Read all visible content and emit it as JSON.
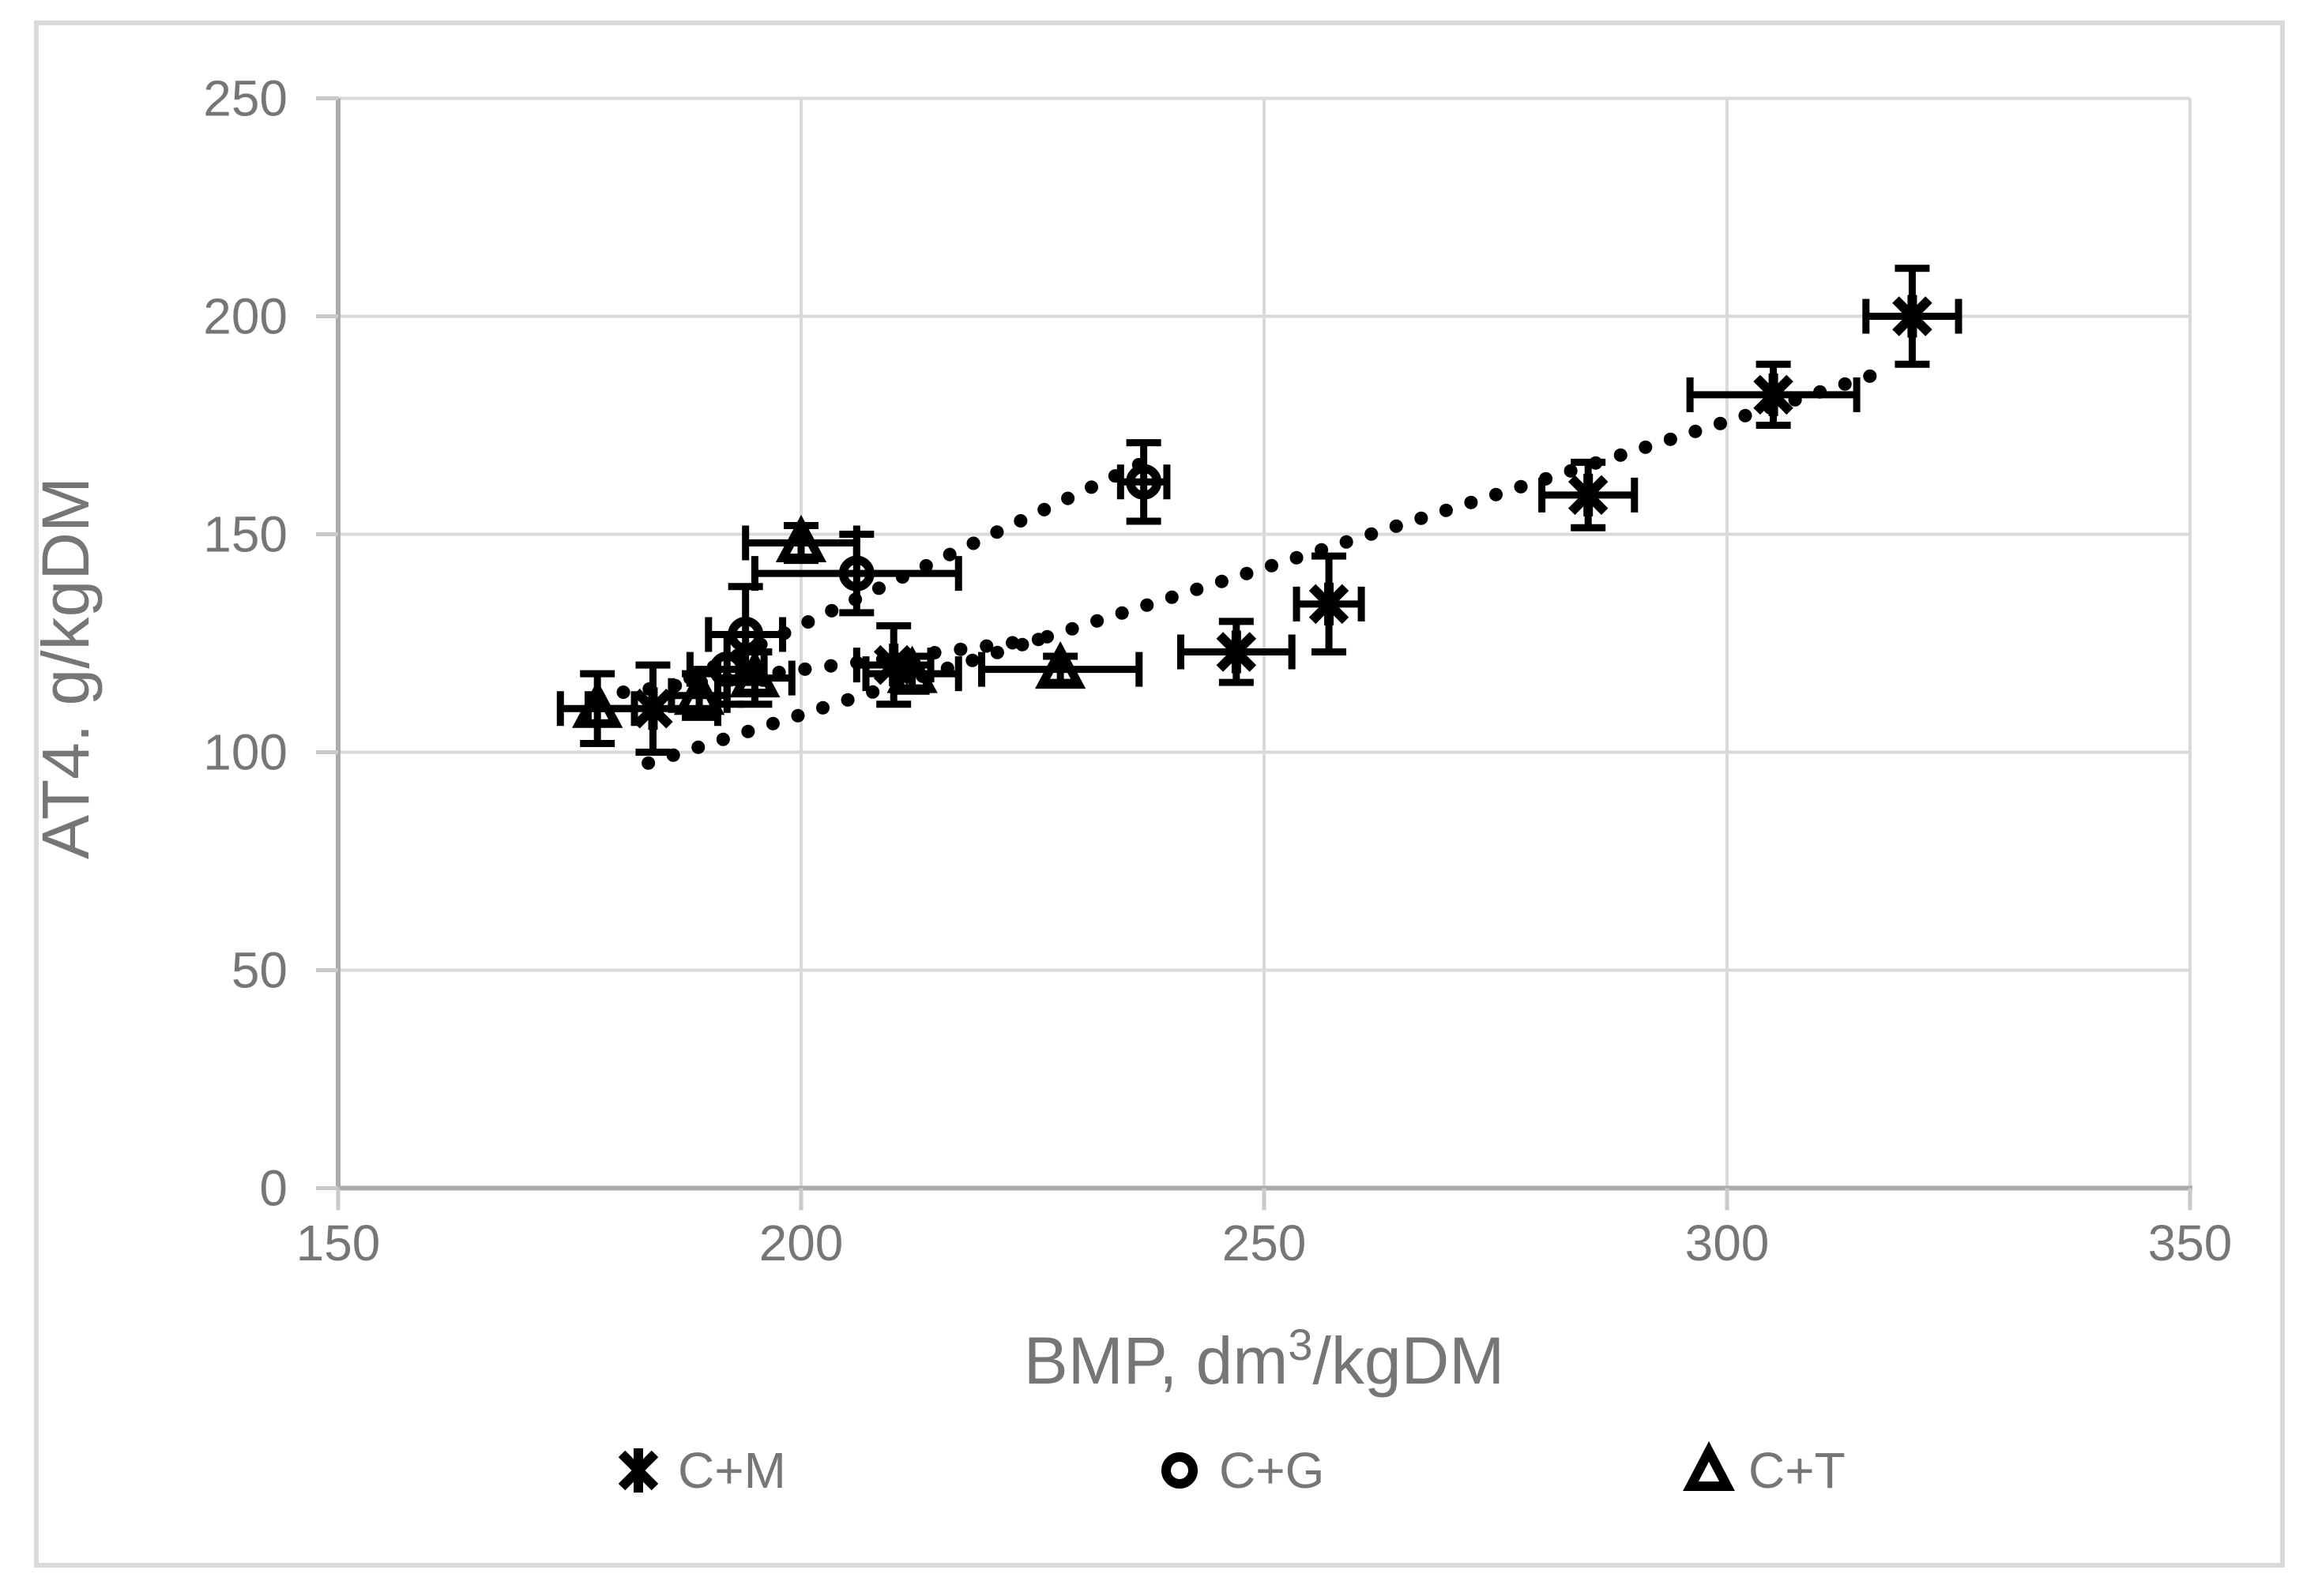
{
  "chart_data": {
    "type": "scatter",
    "title": "",
    "xlabel": "BMP, dm3/kgDM",
    "xlabel_parts": {
      "pre": "BMP, dm",
      "sup": "3",
      "post": "/kgDM"
    },
    "ylabel": "AT4. g/kgDM",
    "xlim": [
      150,
      350
    ],
    "ylim": [
      0,
      250
    ],
    "x_ticks": [
      150,
      200,
      250,
      300,
      350
    ],
    "x_tick_labels": [
      "150",
      "200",
      "250",
      "300",
      "350"
    ],
    "y_ticks": [
      0,
      50,
      100,
      150,
      200,
      250
    ],
    "y_tick_labels": [
      "0",
      "50",
      "100",
      "150",
      "200",
      "250"
    ],
    "grid": true,
    "legend_position": "bottom",
    "colors": {
      "series": "#000000",
      "text": "#767676",
      "gridline": "#D9D9D9",
      "axis_line": "#ABABAB",
      "tick_mark": "#C9C9C9",
      "chart_border": "#D9D9D9",
      "background": "#FFFFFF"
    },
    "series": [
      {
        "name": "C+M",
        "label": "C+M",
        "marker": "asterisk",
        "points": [
          {
            "x": 184,
            "y": 110,
            "xerr": 7,
            "yerr": 10
          },
          {
            "x": 210,
            "y": 120,
            "xerr": 4,
            "yerr": 9
          },
          {
            "x": 247,
            "y": 123,
            "xerr": 6,
            "yerr": 7
          },
          {
            "x": 257,
            "y": 134,
            "xerr": 3.5,
            "yerr": 11
          },
          {
            "x": 285,
            "y": 159,
            "xerr": 5,
            "yerr": 7.5
          },
          {
            "x": 305,
            "y": 182,
            "xerr": 9,
            "yerr": 7
          },
          {
            "x": 320,
            "y": 200,
            "xerr": 5,
            "yerr": 11
          }
        ],
        "trendline": {
          "style": "dotted",
          "x1": 183.5,
          "y1": 97.5,
          "x2": 318,
          "y2": 188
        }
      },
      {
        "name": "C+G",
        "label": "C+G",
        "marker": "circle",
        "points": [
          {
            "x": 192,
            "y": 119,
            "xerr": 4,
            "yerr": 8
          },
          {
            "x": 194,
            "y": 127,
            "xerr": 4,
            "yerr": 11
          },
          {
            "x": 206,
            "y": 141,
            "xerr": 11,
            "yerr": 9
          },
          {
            "x": 237,
            "y": 162,
            "xerr": 2.5,
            "yerr": 9
          }
        ],
        "trendline": {
          "style": "dotted",
          "x1": 188,
          "y1": 117,
          "x2": 236.5,
          "y2": 166
        }
      },
      {
        "name": "C+T",
        "label": "C+T",
        "marker": "triangle",
        "points": [
          {
            "x": 178,
            "y": 110,
            "xerr": 4,
            "yerr": 8
          },
          {
            "x": 189,
            "y": 113,
            "xerr": 3,
            "yerr": 5
          },
          {
            "x": 195,
            "y": 117,
            "xerr": 4,
            "yerr": 6
          },
          {
            "x": 200,
            "y": 148,
            "xerr": 6,
            "yerr": 4
          },
          {
            "x": 212,
            "y": 118,
            "xerr": 5,
            "yerr": 4
          },
          {
            "x": 228,
            "y": 119,
            "xerr": 8.5,
            "yerr": 3
          }
        ],
        "trendline": {
          "style": "dotted",
          "x1": 178,
          "y1": 113,
          "x2": 228,
          "y2": 126.5
        }
      }
    ]
  }
}
